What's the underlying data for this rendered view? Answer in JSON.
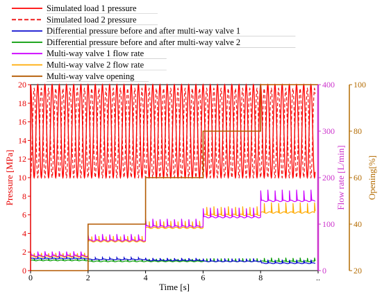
{
  "chart_data": {
    "type": "line",
    "title": "",
    "legend_placement": "top-left",
    "xlabel": "Time [s]",
    "xlim": [
      0,
      10
    ],
    "x_ticks": [
      "0",
      "2",
      "4",
      "6",
      "8",
      ".."
    ],
    "axes": {
      "pressure": {
        "label": "Pressure [MPa]",
        "ylim": [
          0,
          20
        ],
        "ticks": [
          "0",
          "2",
          "4",
          "6",
          "8",
          "10",
          "12",
          "14",
          "16",
          "18",
          "20"
        ],
        "color": "#e60000"
      },
      "flow": {
        "label": "Flow rate [L/min]",
        "ylim": [
          0,
          400
        ],
        "ticks": [
          "0",
          "100",
          "200",
          "300",
          "400"
        ],
        "color": "#cc33cc"
      },
      "opening": {
        "label": "Opening[%]",
        "ylim": [
          20,
          100
        ],
        "ticks": [
          "20",
          "40",
          "60",
          "80",
          "100"
        ],
        "color": "#b36b00"
      }
    },
    "series": [
      {
        "name": "Simulated load 1 pressure",
        "axis": "pressure",
        "color": "#ff0000",
        "dash": "solid",
        "description_values": {
          "min": 10,
          "max": 20,
          "period_s": 0.25
        }
      },
      {
        "name": "Simulated load 2 pressure",
        "axis": "pressure",
        "color": "#ee1111",
        "dash": "dashed",
        "description_values": {
          "min": 10,
          "max": 19.6,
          "period_s": 0.25
        }
      },
      {
        "name": "Differential pressure before and after multi-way valve 1",
        "axis": "pressure",
        "color": "#0000cc",
        "dash": "solid",
        "levels": [
          1.3,
          1.2,
          1.1,
          1.0,
          0.8
        ]
      },
      {
        "name": "Differential pressure before and after multi-way valve 2",
        "axis": "pressure",
        "color": "#009900",
        "dash": "solid",
        "levels": [
          1.1,
          1.0,
          1.0,
          1.0,
          1.0
        ]
      },
      {
        "name": "Multi-way valve 1 flow rate",
        "axis": "flow",
        "color": "#cc00ff",
        "dash": "solid",
        "levels": [
          32,
          65,
          95,
          115,
          150
        ]
      },
      {
        "name": "Multi-way valve 2 flow rate",
        "axis": "flow",
        "color": "#ffaa00",
        "dash": "solid",
        "levels": [
          30,
          63,
          92,
          120,
          125
        ]
      },
      {
        "name": "Multi-way valve opening",
        "axis": "opening",
        "color": "#b35900",
        "dash": "solid",
        "steps_x": [
          0,
          2,
          4,
          6,
          8,
          10
        ],
        "steps_y": [
          20,
          40,
          60,
          80,
          100
        ]
      }
    ]
  }
}
